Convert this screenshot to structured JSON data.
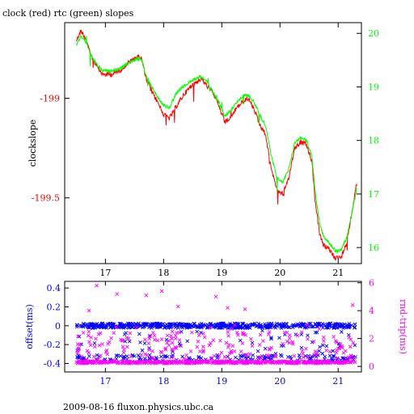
{
  "title": "clock (red) rtc (green) slopes",
  "footer": "2009-08-16 fluxon.physics.ubc.ca",
  "colors": {
    "clock": "#ff0000",
    "rtc": "#00ff00",
    "offset": "#0000ff",
    "rndtrip": "#ff00ff",
    "axis": "#000000"
  },
  "chart_data": [
    {
      "type": "line",
      "title": "clock (red) rtc (green) slopes",
      "xlim": [
        16.3,
        21.4
      ],
      "x_ticks": [
        17,
        18,
        19,
        20,
        21
      ],
      "left_axis": {
        "label": "clockslope",
        "ylim": [
          -199.83,
          -198.62
        ],
        "ticks": [
          -199,
          -199.5
        ],
        "tick_labels": [
          "-199",
          "-199.5"
        ]
      },
      "right_axis": {
        "label": "",
        "ylim": [
          15.7,
          20.2
        ],
        "ticks": [
          16,
          17,
          18,
          19,
          20
        ],
        "tick_labels": [
          "16",
          "17",
          "18",
          "19",
          "20"
        ]
      },
      "series": [
        {
          "name": "clock",
          "axis": "left",
          "x": [
            16.5,
            16.58,
            16.66,
            16.75,
            16.85,
            16.95,
            17.1,
            17.25,
            17.4,
            17.55,
            17.62,
            17.7,
            17.8,
            17.9,
            18.0,
            18.1,
            18.2,
            18.35,
            18.5,
            18.65,
            18.75,
            18.85,
            18.95,
            19.05,
            19.15,
            19.25,
            19.35,
            19.45,
            19.55,
            19.65,
            19.75,
            19.85,
            19.95,
            20.05,
            20.15,
            20.25,
            20.35,
            20.45,
            20.55,
            20.6,
            20.68,
            20.75,
            20.85,
            20.95,
            21.05,
            21.15,
            21.25,
            21.32
          ],
          "y": [
            -198.71,
            -198.66,
            -198.7,
            -198.78,
            -198.84,
            -198.88,
            -198.88,
            -198.86,
            -198.82,
            -198.79,
            -198.8,
            -198.9,
            -198.97,
            -199.02,
            -199.08,
            -199.1,
            -199.05,
            -198.98,
            -198.93,
            -198.9,
            -198.94,
            -198.97,
            -199.04,
            -199.12,
            -199.1,
            -199.05,
            -199.02,
            -199.0,
            -199.05,
            -199.13,
            -199.18,
            -199.35,
            -199.46,
            -199.48,
            -199.4,
            -199.25,
            -199.22,
            -199.23,
            -199.32,
            -199.5,
            -199.68,
            -199.74,
            -199.76,
            -199.8,
            -199.8,
            -199.72,
            -199.55,
            -199.42
          ]
        },
        {
          "name": "rtc",
          "axis": "right",
          "x": [
            16.5,
            16.58,
            16.66,
            16.75,
            16.85,
            16.95,
            17.1,
            17.25,
            17.4,
            17.55,
            17.62,
            17.7,
            17.8,
            17.9,
            18.0,
            18.1,
            18.2,
            18.35,
            18.5,
            18.65,
            18.75,
            18.85,
            18.95,
            19.05,
            19.15,
            19.25,
            19.35,
            19.45,
            19.55,
            19.65,
            19.75,
            19.85,
            19.95,
            20.05,
            20.15,
            20.25,
            20.35,
            20.45,
            20.55,
            20.6,
            20.68,
            20.75,
            20.85,
            20.95,
            21.05,
            21.15,
            21.25,
            21.32
          ],
          "y": [
            19.78,
            19.95,
            19.85,
            19.6,
            19.42,
            19.3,
            19.3,
            19.34,
            19.45,
            19.52,
            19.52,
            19.2,
            19.0,
            18.8,
            18.66,
            18.6,
            18.85,
            19.02,
            19.12,
            19.2,
            19.08,
            18.9,
            18.72,
            18.45,
            18.55,
            18.7,
            18.82,
            18.85,
            18.72,
            18.48,
            18.28,
            17.72,
            17.3,
            17.22,
            17.45,
            17.95,
            18.05,
            18.02,
            17.7,
            17.1,
            16.45,
            16.2,
            16.08,
            15.95,
            15.95,
            16.2,
            16.72,
            17.1
          ]
        }
      ]
    },
    {
      "type": "scatter",
      "xlim": [
        16.3,
        21.4
      ],
      "x_ticks": [
        17,
        18,
        19,
        20,
        21
      ],
      "left_axis": {
        "label": "offset(ms)",
        "ylim": [
          -0.49,
          0.47
        ],
        "ticks": [
          0.4,
          0.2,
          0,
          -0.2,
          -0.4
        ],
        "tick_labels": [
          "0.4",
          "0.2",
          "0",
          "-0.2",
          "-0.4"
        ]
      },
      "right_axis": {
        "label": "rnd-trip(ms)",
        "ylim": [
          -0.4,
          6.1
        ],
        "ticks": [
          0,
          2,
          4,
          6
        ],
        "tick_labels": [
          "0",
          "2",
          "4",
          "6"
        ]
      },
      "series": [
        {
          "name": "offset",
          "axis": "left",
          "marker": "x",
          "bands": [
            {
              "y_center": 0.0,
              "spread": 0.025,
              "density": "dense"
            },
            {
              "y_center": -0.34,
              "spread": 0.03,
              "density": "sparse"
            }
          ]
        },
        {
          "name": "rnd-trip",
          "axis": "right",
          "marker": "x",
          "bands": [
            {
              "y_center": 0.3,
              "spread": 0.08,
              "density": "dense"
            },
            {
              "y_center": 1.5,
              "spread": 1.0,
              "density": "sparse"
            }
          ],
          "outliers": [
            [
              16.85,
              5.8
            ],
            [
              17.2,
              5.2
            ],
            [
              17.7,
              5.1
            ],
            [
              17.97,
              5.4
            ],
            [
              18.25,
              4.3
            ],
            [
              18.9,
              5.0
            ],
            [
              19.1,
              4.2
            ],
            [
              19.4,
              4.1
            ],
            [
              21.25,
              4.4
            ],
            [
              16.72,
              4.0
            ]
          ]
        }
      ]
    }
  ]
}
